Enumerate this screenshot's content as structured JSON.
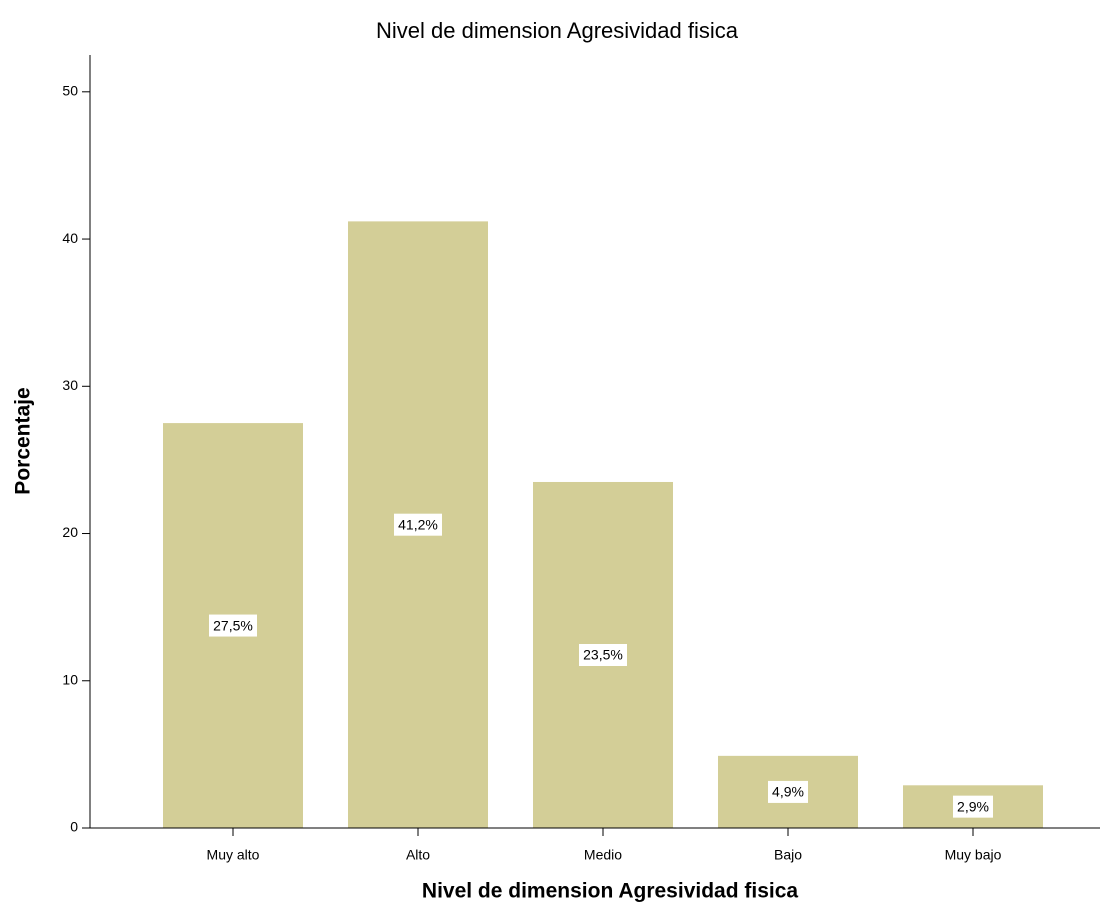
{
  "chart_data": {
    "type": "bar",
    "title": "Nivel de dimension Agresividad fisica",
    "x_label": "Nivel de dimension Agresividad fisica",
    "y_label": "Porcentaje",
    "categories": [
      "Muy alto",
      "Alto",
      "Medio",
      "Bajo",
      "Muy bajo"
    ],
    "values": [
      27.5,
      41.2,
      23.5,
      4.9,
      2.9
    ],
    "value_labels": [
      "27,5%",
      "41,2%",
      "23,5%",
      "4,9%",
      "2,9%"
    ],
    "color": "#d3ce97",
    "ylim": [
      0,
      52.5
    ],
    "yticks": [
      0,
      10,
      20,
      30,
      40,
      50
    ],
    "grid": false
  }
}
